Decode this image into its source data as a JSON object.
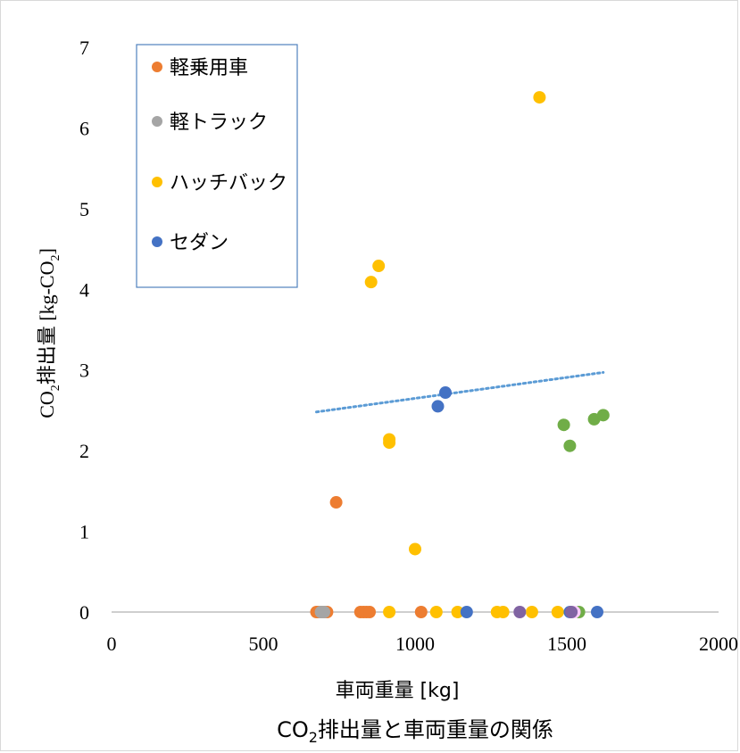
{
  "chart_data": {
    "type": "scatter",
    "title": "CO₂排出量と車両重量の関係",
    "xlabel": "車両重量 [kg]",
    "ylabel": "CO₂排出量 [kg-CO₂]",
    "xlim": [
      0,
      2000
    ],
    "ylim": [
      0,
      7
    ],
    "x_ticks": [
      "0",
      "500",
      "1000",
      "1500",
      "2000"
    ],
    "y_ticks": [
      "0",
      "1",
      "2",
      "3",
      "4",
      "5",
      "6",
      "7"
    ],
    "grid": false,
    "legend_position": "top-left",
    "series": [
      {
        "name": "軽乗用車",
        "color": "#ED7D31",
        "points": [
          [
            675,
            0
          ],
          [
            680,
            0
          ],
          [
            690,
            0
          ],
          [
            700,
            0
          ],
          [
            710,
            0
          ],
          [
            740,
            1.36
          ],
          [
            820,
            0
          ],
          [
            830,
            0
          ],
          [
            840,
            0
          ],
          [
            850,
            0
          ],
          [
            1020,
            0
          ]
        ]
      },
      {
        "name": "軽トラック",
        "color": "#A5A5A5",
        "points": [
          [
            690,
            0
          ],
          [
            700,
            0
          ]
        ]
      },
      {
        "name": "ハッチバック",
        "color": "#FFC000",
        "points": [
          [
            855,
            4.09
          ],
          [
            880,
            4.29
          ],
          [
            915,
            2.14
          ],
          [
            915,
            2.1
          ],
          [
            915,
            0
          ],
          [
            1000,
            0.78
          ],
          [
            1070,
            0
          ],
          [
            1140,
            0
          ],
          [
            1270,
            0
          ],
          [
            1290,
            0
          ],
          [
            1385,
            0
          ],
          [
            1410,
            6.38
          ],
          [
            1470,
            0
          ]
        ]
      },
      {
        "name": "セダン",
        "color": "#4472C4",
        "points": [
          [
            1075,
            2.55
          ],
          [
            1100,
            2.72
          ],
          [
            1170,
            0
          ],
          [
            1510,
            0
          ],
          [
            1600,
            0
          ]
        ]
      },
      {
        "name": "",
        "color": "#70AD47",
        "points": [
          [
            1490,
            2.32
          ],
          [
            1510,
            2.06
          ],
          [
            1540,
            0
          ],
          [
            1590,
            2.39
          ],
          [
            1620,
            2.44
          ]
        ]
      },
      {
        "name": "",
        "color": "#FFCCFF",
        "points": [
          [
            1345,
            0
          ],
          [
            1525,
            0
          ]
        ]
      },
      {
        "name": "",
        "color": "#8064A2",
        "points": [
          [
            1345,
            0
          ],
          [
            1515,
            0
          ]
        ]
      }
    ],
    "trendline": {
      "type": "linear",
      "style": "dotted",
      "color": "#5B9BD5",
      "x_range": [
        675,
        1620
      ],
      "y_at_x_range": [
        2.48,
        2.97
      ]
    }
  }
}
